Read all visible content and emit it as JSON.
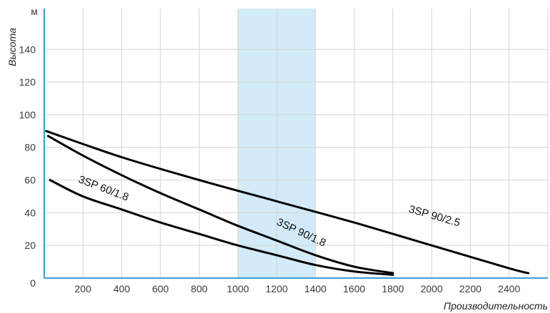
{
  "chart_data": {
    "type": "line",
    "xlabel": "Производительность",
    "ylabel": "Высота",
    "y_unit": "м",
    "xlim": [
      0,
      2600
    ],
    "ylim": [
      0,
      165
    ],
    "x_ticks": [
      "200",
      "400",
      "600",
      "800",
      "1000",
      "1200",
      "1400",
      "1600",
      "1800",
      "2000",
      "2200",
      "2400"
    ],
    "y_ticks": [
      "0",
      "20",
      "40",
      "60",
      "80",
      "100",
      "120",
      "140"
    ],
    "grid": true,
    "highlight_band": {
      "x_from": 1000,
      "x_to": 1400,
      "color": "#d3ebf8"
    },
    "series": [
      {
        "name": "3SP 60/1.8",
        "x": [
          30,
          200,
          400,
          600,
          800,
          1000,
          1200,
          1400,
          1600,
          1800
        ],
        "y": [
          60,
          50,
          42,
          34,
          27,
          20,
          14,
          8,
          4,
          2
        ],
        "label_at": {
          "x": 300,
          "y": 53,
          "angle": 21
        }
      },
      {
        "name": "3SP 90/1.8",
        "x": [
          20,
          200,
          400,
          600,
          800,
          1000,
          1200,
          1400,
          1600,
          1800
        ],
        "y": [
          87,
          75,
          63,
          52,
          42,
          32,
          23,
          14,
          7,
          3
        ],
        "label_at": {
          "x": 1320,
          "y": 26,
          "angle": 25
        }
      },
      {
        "name": "3SP 90/2.5",
        "x": [
          10,
          400,
          800,
          1200,
          1600,
          2000,
          2400,
          2500
        ],
        "y": [
          90,
          74,
          60,
          47,
          34,
          20,
          6,
          3
        ],
        "label_at": {
          "x": 2010,
          "y": 36,
          "angle": 16
        }
      }
    ],
    "colors": {
      "line": "#000000",
      "axis": "#3a9ecf",
      "grid": "#d4d4d4"
    }
  }
}
